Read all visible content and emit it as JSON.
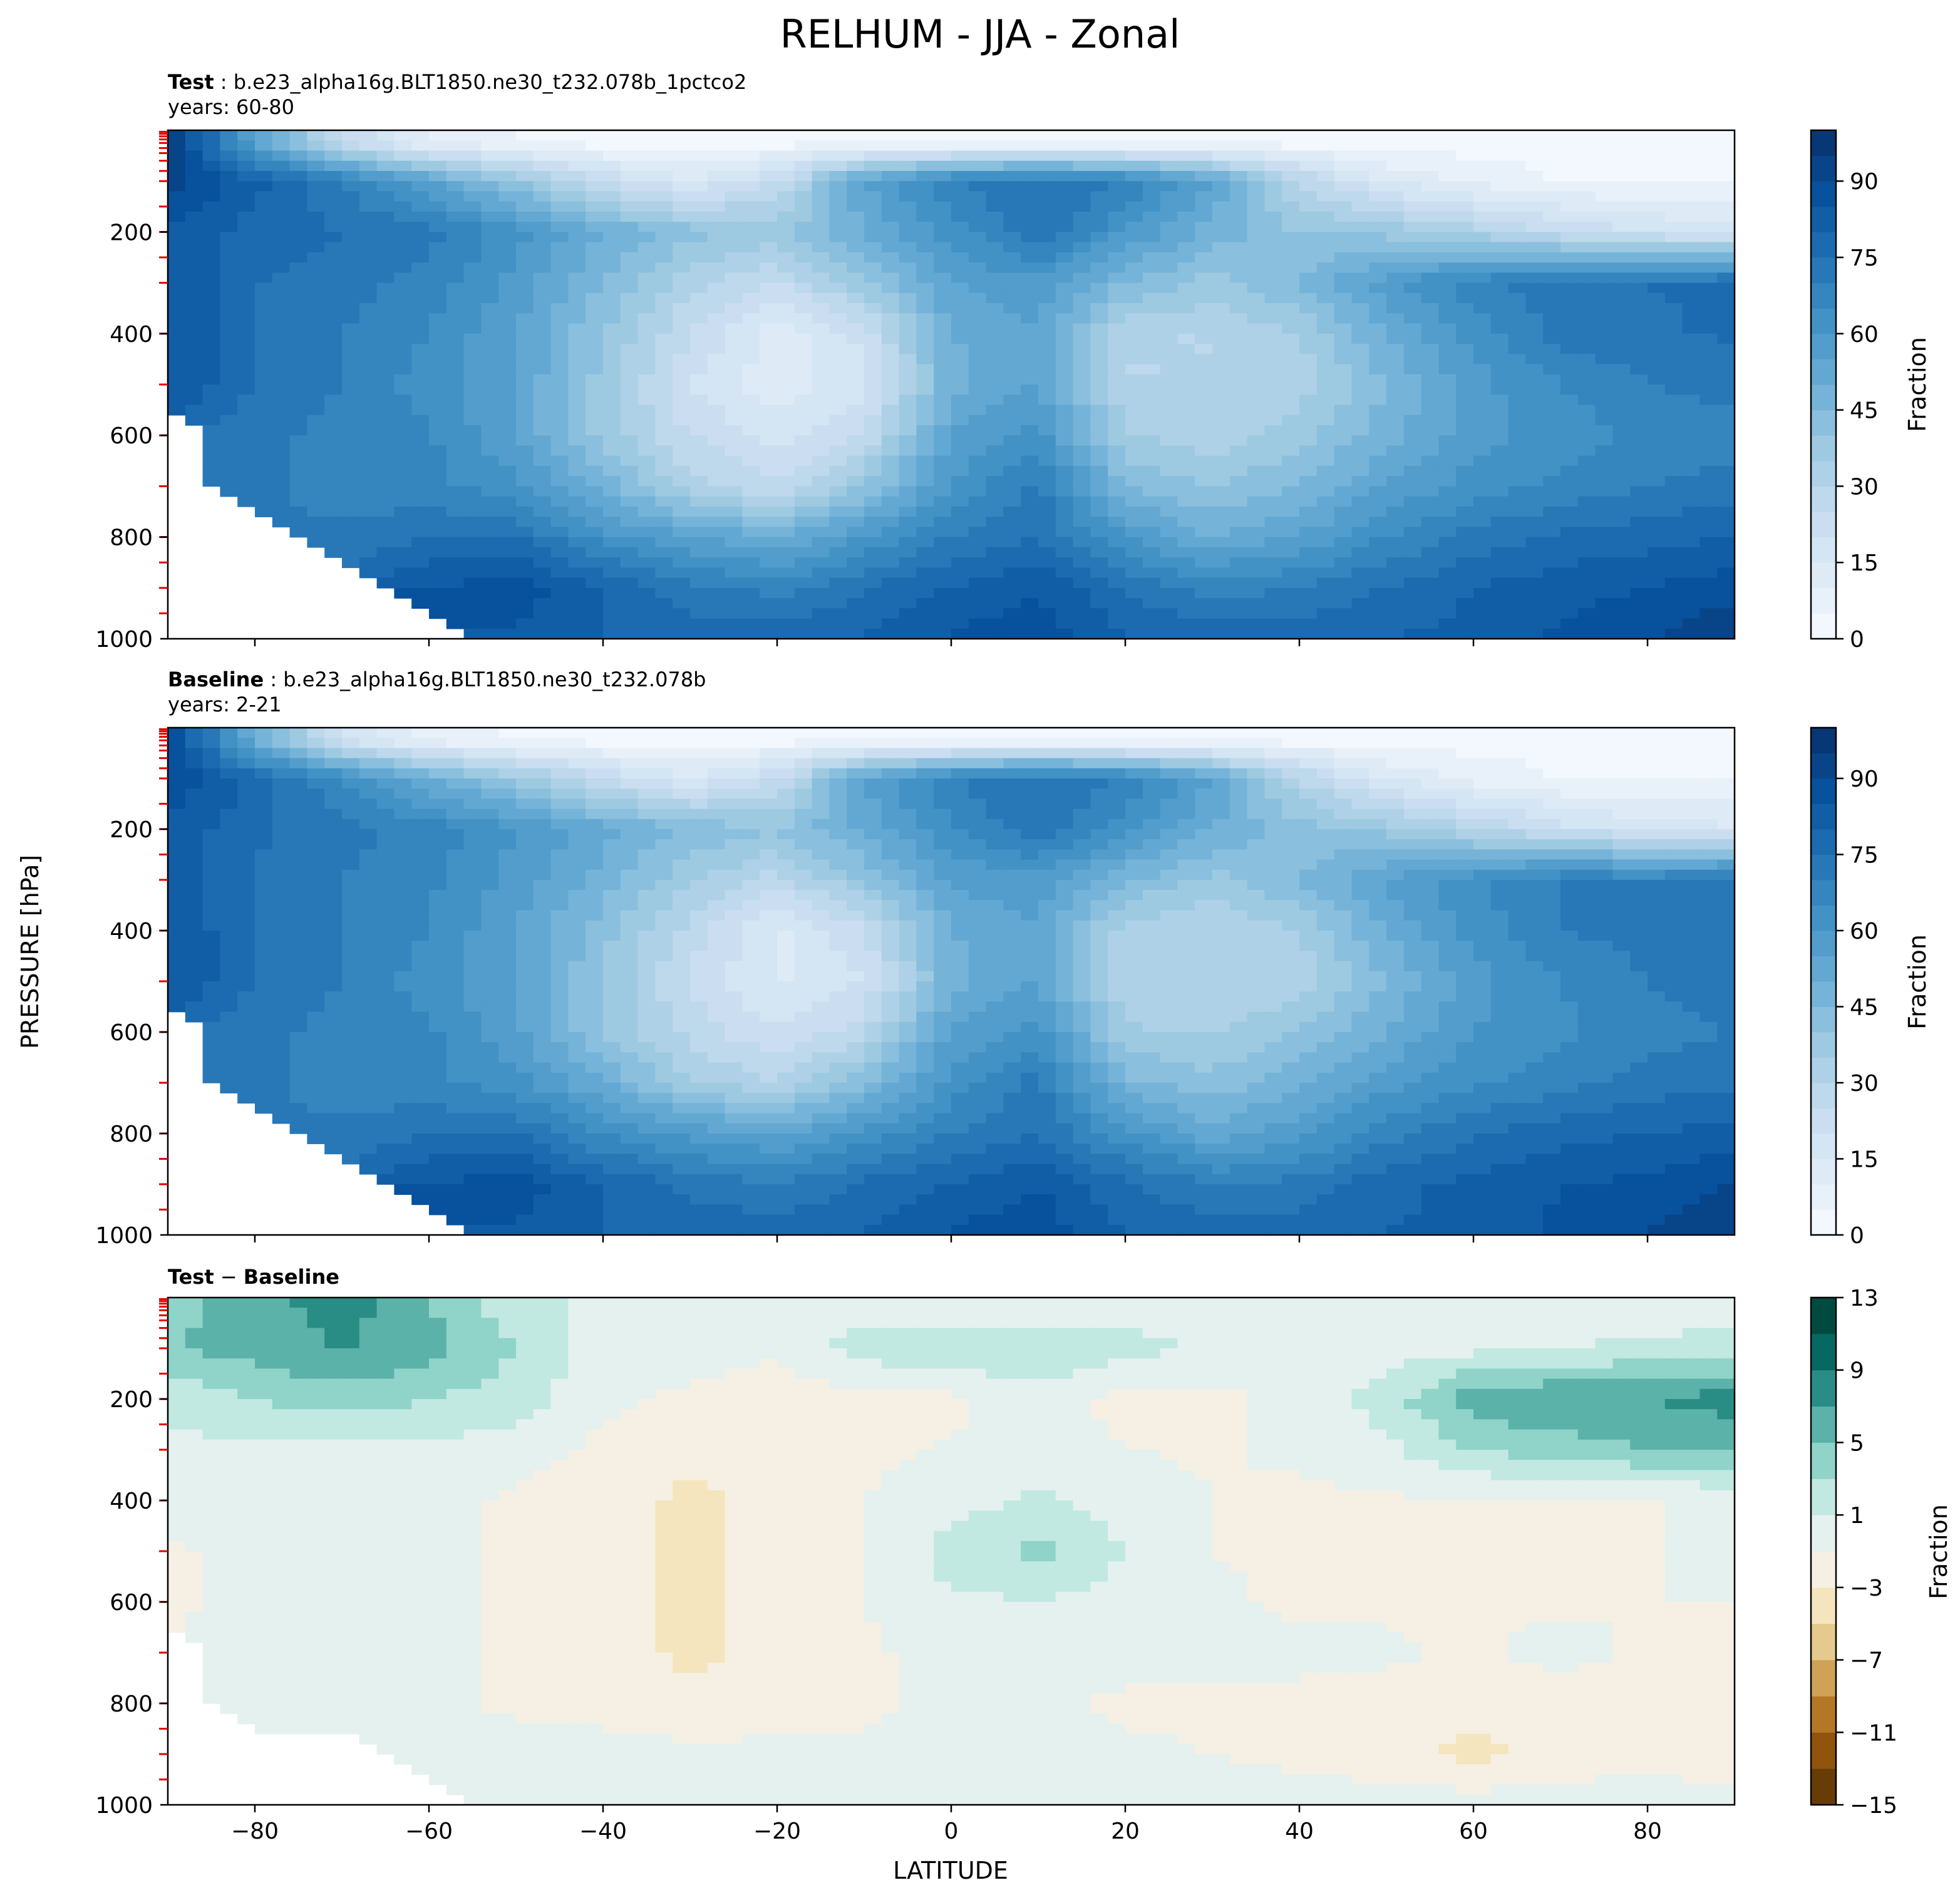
{
  "suptitle": "RELHUM - JJA - Zonal",
  "ylabel": "PRESSURE [hPa]",
  "xlabel": "LATITUDE",
  "panels": [
    {
      "title_bold": "Test",
      "title_rest": " : b.e23_alpha16g.BLT1850.ne30_t232.078b_1pctco2",
      "years": "years: 60-80",
      "cb_label": "Fraction"
    },
    {
      "title_bold": "Baseline",
      "title_rest": " : b.e23_alpha16g.BLT1850.ne30_t232.078b",
      "years": "years: 2-21",
      "cb_label": "Fraction"
    },
    {
      "title_bold": "Test",
      "title_mid": " − ",
      "title_bold2": "Baseline",
      "cb_label": "Fraction"
    }
  ],
  "chart_data": [
    {
      "type": "heatmap",
      "title": "Test : b.e23_alpha16g.BLT1850.ne30_t232.078b_1pctco2",
      "subtitle": "years: 60-80",
      "xlabel": "LATITUDE",
      "ylabel": "PRESSURE [hPa]",
      "xlim": [
        -90,
        90
      ],
      "ylim": [
        1000,
        0
      ],
      "x_ticks": [
        -80,
        -60,
        -40,
        -20,
        0,
        20,
        40,
        60,
        80
      ],
      "y_ticks": [
        200,
        400,
        600,
        800,
        1000
      ],
      "colorbar": {
        "label": "Fraction",
        "range": [
          0,
          100
        ],
        "ticks": [
          0,
          15,
          30,
          45,
          60,
          75,
          90
        ],
        "colormap": "Blues"
      },
      "field": {
        "lat": [
          -90,
          -80,
          -70,
          -60,
          -50,
          -40,
          -30,
          -20,
          -10,
          0,
          10,
          20,
          30,
          40,
          50,
          60,
          70,
          80,
          90
        ],
        "pressure": [
          25,
          100,
          200,
          300,
          400,
          500,
          600,
          700,
          800,
          900,
          1000
        ],
        "values": [
          [
            95,
            55,
            25,
            10,
            5,
            3,
            3,
            3,
            3,
            3,
            3,
            3,
            3,
            3,
            3,
            3,
            3,
            3,
            3
          ],
          [
            92,
            82,
            70,
            55,
            40,
            25,
            15,
            25,
            55,
            70,
            75,
            70,
            55,
            30,
            15,
            8,
            5,
            4,
            4
          ],
          [
            85,
            78,
            75,
            72,
            62,
            50,
            42,
            38,
            50,
            62,
            75,
            60,
            48,
            40,
            38,
            32,
            25,
            20,
            18
          ],
          [
            85,
            75,
            72,
            68,
            58,
            45,
            32,
            25,
            38,
            55,
            58,
            45,
            38,
            45,
            58,
            68,
            74,
            75,
            76
          ],
          [
            85,
            75,
            70,
            65,
            55,
            40,
            25,
            12,
            22,
            50,
            55,
            30,
            30,
            35,
            50,
            62,
            72,
            74,
            76
          ],
          [
            85,
            75,
            70,
            62,
            55,
            38,
            20,
            12,
            18,
            48,
            55,
            30,
            30,
            32,
            45,
            58,
            65,
            70,
            72
          ],
          [
            null,
            72,
            68,
            66,
            55,
            38,
            25,
            18,
            25,
            55,
            62,
            35,
            32,
            38,
            48,
            58,
            62,
            66,
            68
          ],
          [
            null,
            72,
            66,
            66,
            62,
            48,
            32,
            25,
            40,
            60,
            72,
            45,
            40,
            45,
            55,
            62,
            66,
            70,
            72
          ],
          [
            null,
            null,
            72,
            75,
            75,
            62,
            55,
            50,
            60,
            70,
            75,
            60,
            50,
            55,
            65,
            72,
            76,
            78,
            80
          ],
          [
            null,
            null,
            null,
            85,
            88,
            80,
            72,
            68,
            75,
            80,
            85,
            75,
            68,
            70,
            75,
            80,
            83,
            85,
            88
          ],
          [
            null,
            null,
            null,
            null,
            84,
            80,
            78,
            78,
            80,
            86,
            88,
            80,
            78,
            78,
            80,
            82,
            86,
            90,
            95
          ]
        ]
      }
    },
    {
      "type": "heatmap",
      "title": "Baseline : b.e23_alpha16g.BLT1850.ne30_t232.078b",
      "subtitle": "years: 2-21",
      "xlabel": "LATITUDE",
      "ylabel": "PRESSURE [hPa]",
      "xlim": [
        -90,
        90
      ],
      "ylim": [
        1000,
        0
      ],
      "x_ticks": [
        -80,
        -60,
        -40,
        -20,
        0,
        20,
        40,
        60,
        80
      ],
      "y_ticks": [
        200,
        400,
        600,
        800,
        1000
      ],
      "colorbar": {
        "label": "Fraction",
        "range": [
          0,
          100
        ],
        "ticks": [
          0,
          15,
          30,
          45,
          60,
          75,
          90
        ],
        "colormap": "Blues"
      },
      "field": {
        "lat": [
          -90,
          -80,
          -70,
          -60,
          -50,
          -40,
          -30,
          -20,
          -10,
          0,
          10,
          20,
          30,
          40,
          50,
          60,
          70,
          80,
          90
        ],
        "pressure": [
          25,
          100,
          200,
          300,
          400,
          500,
          600,
          700,
          800,
          900,
          1000
        ],
        "values": [
          [
            92,
            50,
            20,
            8,
            4,
            3,
            3,
            3,
            3,
            3,
            3,
            3,
            3,
            3,
            3,
            3,
            3,
            3,
            3
          ],
          [
            90,
            78,
            65,
            50,
            38,
            25,
            15,
            25,
            55,
            70,
            75,
            70,
            55,
            30,
            15,
            8,
            5,
            4,
            4
          ],
          [
            84,
            76,
            72,
            68,
            60,
            52,
            44,
            40,
            52,
            64,
            74,
            62,
            50,
            42,
            38,
            30,
            22,
            18,
            16
          ],
          [
            84,
            74,
            70,
            66,
            58,
            48,
            36,
            28,
            40,
            56,
            58,
            46,
            38,
            45,
            56,
            64,
            70,
            70,
            72
          ],
          [
            85,
            75,
            70,
            65,
            55,
            42,
            28,
            14,
            24,
            50,
            55,
            32,
            30,
            35,
            50,
            62,
            70,
            72,
            74
          ],
          [
            85,
            75,
            70,
            62,
            55,
            40,
            24,
            14,
            20,
            48,
            55,
            30,
            30,
            32,
            45,
            58,
            65,
            70,
            72
          ],
          [
            null,
            72,
            68,
            66,
            56,
            40,
            28,
            20,
            28,
            56,
            62,
            36,
            34,
            40,
            50,
            60,
            64,
            68,
            70
          ],
          [
            null,
            72,
            66,
            66,
            62,
            50,
            36,
            30,
            44,
            62,
            72,
            46,
            42,
            48,
            58,
            64,
            68,
            72,
            74
          ],
          [
            null,
            null,
            72,
            75,
            75,
            64,
            58,
            54,
            62,
            70,
            75,
            62,
            52,
            58,
            68,
            74,
            78,
            80,
            82
          ],
          [
            null,
            null,
            null,
            85,
            88,
            80,
            74,
            70,
            76,
            80,
            85,
            76,
            70,
            72,
            78,
            82,
            85,
            86,
            90
          ],
          [
            null,
            null,
            null,
            null,
            84,
            80,
            78,
            78,
            80,
            86,
            88,
            80,
            78,
            78,
            80,
            82,
            86,
            90,
            95
          ]
        ]
      }
    },
    {
      "type": "heatmap",
      "title": "Test − Baseline",
      "xlabel": "LATITUDE",
      "ylabel": "PRESSURE [hPa]",
      "xlim": [
        -90,
        90
      ],
      "ylim": [
        1000,
        0
      ],
      "x_ticks": [
        -80,
        -60,
        -40,
        -20,
        0,
        20,
        40,
        60,
        80
      ],
      "y_ticks": [
        200,
        400,
        600,
        800,
        1000
      ],
      "colorbar": {
        "label": "Fraction",
        "boundaries": [
          -15,
          -13,
          -11,
          -9,
          -7,
          -5,
          -3,
          -1,
          1,
          3,
          5,
          7,
          9,
          11,
          13
        ],
        "ticks": [
          -15,
          -11,
          -7,
          -3,
          1,
          5,
          9,
          13
        ],
        "colormap": "BrBG"
      },
      "field": {
        "lat": [
          -90,
          -80,
          -70,
          -60,
          -50,
          -40,
          -30,
          -20,
          -10,
          0,
          10,
          20,
          30,
          40,
          50,
          60,
          70,
          80,
          90
        ],
        "pressure": [
          25,
          100,
          200,
          300,
          400,
          500,
          600,
          700,
          800,
          900,
          1000
        ],
        "values": [
          [
            4,
            6,
            8,
            5,
            2,
            0,
            0,
            0,
            0,
            0,
            0,
            0,
            0,
            0,
            0,
            0,
            0,
            0,
            0
          ],
          [
            5,
            6,
            7,
            6,
            3,
            0,
            0,
            -0.5,
            2,
            2.5,
            2.5,
            2,
            0.5,
            0,
            0,
            0.5,
            1,
            1.5,
            2
          ],
          [
            1.5,
            3,
            4,
            3,
            2,
            -0.5,
            -1.5,
            -2.5,
            -1.5,
            -1.5,
            0.5,
            -2,
            -1.5,
            -0.5,
            2,
            6,
            7,
            7,
            8
          ],
          [
            0.5,
            0.5,
            0.5,
            0.5,
            0,
            -1.5,
            -2.5,
            -2.5,
            -1.5,
            -0.8,
            0,
            -1,
            -1.2,
            -0.5,
            0.5,
            3,
            4,
            5,
            5
          ],
          [
            0,
            0,
            0,
            0,
            -1.5,
            -2,
            -3.5,
            -2.5,
            -1,
            0,
            1.5,
            0,
            -1,
            -1.5,
            -1.2,
            -1.2,
            -1.5,
            -1.2,
            -0.5
          ],
          [
            -1.5,
            0,
            0,
            0,
            -1.5,
            -2,
            -3.5,
            -2,
            -1,
            2,
            3.5,
            1,
            -1,
            -1.5,
            -1.5,
            -1.5,
            -1.5,
            -1.2,
            -0.5
          ],
          [
            -1.5,
            0,
            0,
            0,
            -1.5,
            -2,
            -3.5,
            -2,
            -1,
            0.5,
            1,
            0,
            -0.5,
            -1.5,
            -1.5,
            -1.5,
            -1.5,
            -1,
            -1
          ],
          [
            null,
            0,
            0,
            -0.5,
            -1.5,
            -2,
            -3.5,
            -2.5,
            -1.5,
            0,
            0,
            0,
            0,
            -0.5,
            -0.5,
            -1.5,
            0,
            -1.5,
            -1.5
          ],
          [
            null,
            0,
            0,
            -0.5,
            -1.5,
            -2,
            -2.5,
            -2,
            -1.5,
            -0.5,
            -0.5,
            -1.5,
            -1.5,
            -1.5,
            -2,
            -2.5,
            -2.5,
            -2,
            -2.5
          ],
          [
            null,
            null,
            null,
            0,
            0,
            0,
            -0.5,
            -0.5,
            -0.5,
            0,
            0,
            -0.5,
            -1,
            -1.5,
            -2.5,
            -3.5,
            -2.5,
            -1.5,
            -3
          ],
          [
            null,
            null,
            null,
            null,
            0,
            0,
            0,
            0,
            0,
            0,
            0,
            0,
            0,
            0,
            0,
            0,
            0,
            0,
            0
          ]
        ]
      }
    }
  ]
}
